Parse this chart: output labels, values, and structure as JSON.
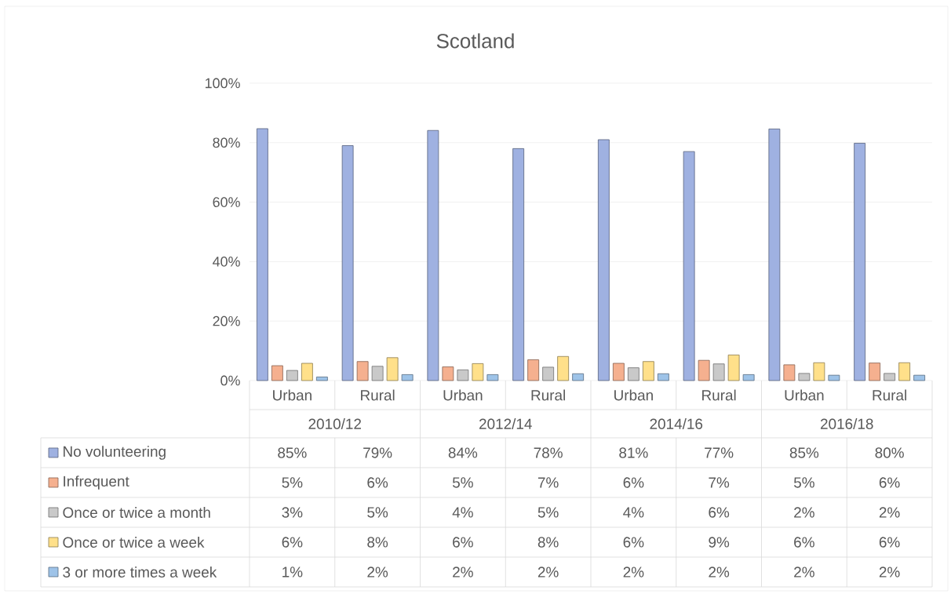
{
  "chart_data": {
    "type": "bar",
    "title": "Scotland",
    "categories": [
      "Urban",
      "Rural",
      "Urban",
      "Rural",
      "Urban",
      "Rural",
      "Urban",
      "Rural"
    ],
    "annotations": [
      "2010/12",
      "2012/14",
      "2014/16",
      "2016/18"
    ],
    "series": [
      {
        "name": "No volunteering",
        "color": "#9fb1e1",
        "values": [
          84.7,
          79,
          84.1,
          78,
          81,
          77,
          84.6,
          79.8
        ],
        "value_labels": [
          "85%",
          "79%",
          "84%",
          "78%",
          "81%",
          "77%",
          "85%",
          "80%"
        ]
      },
      {
        "name": "Infrequent",
        "color": "#f5b08f",
        "values": [
          5,
          6.4,
          4.6,
          7,
          5.8,
          6.8,
          5.3,
          5.9
        ],
        "value_labels": [
          "5%",
          "6%",
          "5%",
          "7%",
          "6%",
          "7%",
          "5%",
          "6%"
        ]
      },
      {
        "name": "Once or twice a month",
        "color": "#c9c9c9",
        "values": [
          3.4,
          4.8,
          3.6,
          4.5,
          4.3,
          5.6,
          2.4,
          2.4
        ],
        "value_labels": [
          "3%",
          "5%",
          "4%",
          "5%",
          "4%",
          "6%",
          "2%",
          "2%"
        ]
      },
      {
        "name": "Once or twice a week",
        "color": "#ffe08a",
        "values": [
          5.8,
          7.7,
          5.7,
          8.1,
          6.4,
          8.6,
          6,
          6
        ],
        "value_labels": [
          "6%",
          "8%",
          "6%",
          "8%",
          "6%",
          "9%",
          "6%",
          "6%"
        ]
      },
      {
        "name": "3 or more times a week",
        "color": "#9ec3e8",
        "values": [
          1.2,
          2,
          2,
          2.3,
          2.3,
          2,
          1.8,
          1.8
        ],
        "value_labels": [
          "1%",
          "2%",
          "2%",
          "2%",
          "2%",
          "2%",
          "2%",
          "2%"
        ]
      }
    ],
    "ylim": [
      0,
      100
    ],
    "yticks": [
      {
        "value": 0,
        "label": "0%"
      },
      {
        "value": 20,
        "label": "20%"
      },
      {
        "value": 40,
        "label": "40%"
      },
      {
        "value": 60,
        "label": "60%"
      },
      {
        "value": 80,
        "label": "80%"
      },
      {
        "value": 100,
        "label": "100%"
      }
    ],
    "grid": "y",
    "legend": "bottom"
  }
}
